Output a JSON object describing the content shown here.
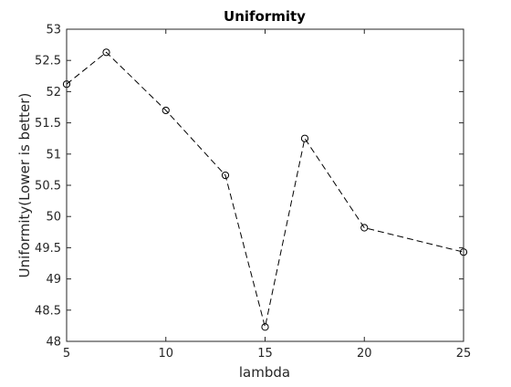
{
  "chart_data": {
    "type": "line",
    "title": "Uniformity",
    "xlabel": "lambda",
    "ylabel": "Uniformity(Lower is better)",
    "xlim": [
      5,
      25
    ],
    "ylim": [
      48,
      53
    ],
    "xticks": [
      5,
      10,
      15,
      20,
      25
    ],
    "yticks": [
      48,
      48.5,
      49,
      49.5,
      50,
      50.5,
      51,
      51.5,
      52,
      52.5,
      53
    ],
    "xtick_labels": [
      "5",
      "10",
      "15",
      "20",
      "25"
    ],
    "ytick_labels": [
      "48",
      "48.5",
      "49",
      "49.5",
      "50",
      "50.5",
      "51",
      "51.5",
      "52",
      "52.5",
      "53"
    ],
    "grid": false,
    "series": [
      {
        "line_style": "dashed",
        "marker": "circle",
        "color": "#000000",
        "x": [
          5,
          7,
          10,
          13,
          15,
          17,
          20,
          25
        ],
        "y": [
          52.12,
          52.63,
          51.7,
          50.66,
          48.23,
          51.25,
          49.82,
          49.43
        ]
      }
    ]
  }
}
